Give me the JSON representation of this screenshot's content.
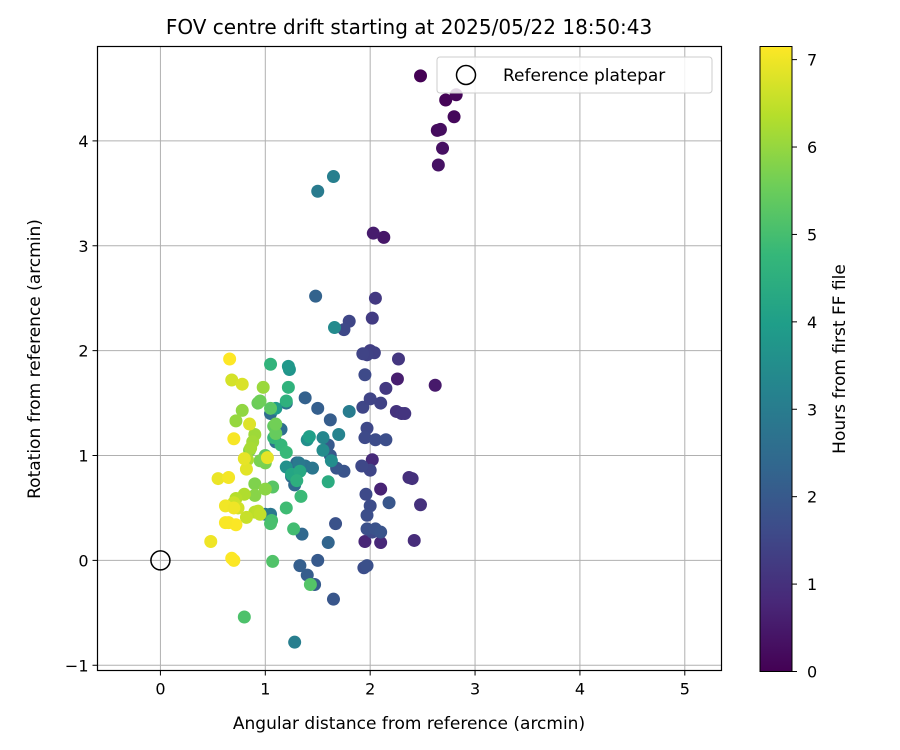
{
  "chart_data": {
    "type": "scatter",
    "title": "FOV centre drift starting at 2025/05/22 18:50:43",
    "xlabel": "Angular distance from reference (arcmin)",
    "ylabel": "Rotation from reference (arcmin)",
    "xlim": [
      -0.6,
      5.35
    ],
    "ylim": [
      -1.05,
      4.9
    ],
    "xticks": [
      0,
      1,
      2,
      3,
      4,
      5
    ],
    "yticks": [
      -1,
      0,
      1,
      2,
      3,
      4
    ],
    "xtick_labels": [
      "0",
      "1",
      "2",
      "3",
      "4",
      "5"
    ],
    "ytick_labels": [
      "−1",
      "0",
      "1",
      "2",
      "3",
      "4"
    ],
    "grid": true,
    "legend": {
      "placement": "top-right",
      "entries": [
        {
          "label": "Reference platepar",
          "marker": "open-circle"
        }
      ]
    },
    "reference_point": {
      "x": 0,
      "y": 0
    },
    "colorbar": {
      "label": "Hours from first FF file",
      "range": [
        0,
        7.15
      ],
      "ticks": [
        0,
        1,
        2,
        3,
        4,
        5,
        6,
        7
      ],
      "tick_labels": [
        "0",
        "1",
        "2",
        "3",
        "4",
        "5",
        "6",
        "7"
      ],
      "colormap": "viridis"
    },
    "series": [
      {
        "points": [
          [
            2.48,
            4.62,
            0.0
          ],
          [
            2.72,
            4.39,
            0.05
          ],
          [
            2.82,
            4.44,
            0.1
          ],
          [
            2.8,
            4.23,
            0.15
          ],
          [
            2.64,
            4.1,
            0.2
          ],
          [
            2.67,
            4.11,
            0.25
          ],
          [
            2.69,
            3.93,
            0.3
          ],
          [
            2.65,
            3.77,
            0.35
          ],
          [
            2.13,
            3.08,
            0.45
          ],
          [
            2.03,
            3.12,
            0.55
          ],
          [
            2.62,
            1.67,
            0.5
          ],
          [
            2.26,
            1.73,
            0.6
          ],
          [
            2.1,
            0.68,
            0.7
          ],
          [
            1.95,
            0.18,
            0.75
          ],
          [
            2.1,
            0.17,
            0.8
          ],
          [
            2.02,
            0.96,
            0.85
          ],
          [
            2.42,
            0.19,
            0.9
          ],
          [
            2.48,
            0.53,
            1.0
          ],
          [
            2.37,
            0.79,
            0.95
          ],
          [
            2.4,
            0.78,
            1.0
          ],
          [
            2.25,
            1.42,
            1.05
          ],
          [
            2.3,
            1.4,
            1.1
          ],
          [
            2.33,
            1.4,
            1.1
          ],
          [
            2.27,
            1.92,
            1.15
          ],
          [
            2.15,
            1.64,
            1.2
          ],
          [
            2.05,
            2.5,
            1.2
          ],
          [
            2.02,
            2.31,
            1.25
          ],
          [
            2.0,
            2.0,
            1.3
          ],
          [
            2.04,
            1.98,
            1.35
          ],
          [
            1.97,
            1.96,
            1.4
          ],
          [
            1.93,
            1.97,
            1.45
          ],
          [
            1.8,
            2.28,
            1.5
          ],
          [
            1.75,
            2.2,
            1.55
          ],
          [
            1.95,
            1.77,
            1.6
          ],
          [
            1.93,
            1.46,
            1.5
          ],
          [
            2.1,
            1.5,
            1.4
          ],
          [
            2.0,
            1.54,
            1.45
          ],
          [
            1.97,
            1.26,
            1.55
          ],
          [
            1.95,
            1.17,
            1.6
          ],
          [
            2.05,
            1.15,
            1.65
          ],
          [
            2.15,
            1.15,
            1.7
          ],
          [
            2.0,
            0.86,
            1.5
          ],
          [
            1.92,
            0.9,
            1.55
          ],
          [
            1.96,
            0.63,
            1.6
          ],
          [
            2.0,
            0.52,
            1.65
          ],
          [
            1.97,
            0.43,
            1.7
          ],
          [
            2.02,
            0.27,
            1.6
          ],
          [
            1.97,
            0.3,
            1.75
          ],
          [
            2.05,
            0.3,
            1.8
          ],
          [
            2.1,
            0.27,
            1.85
          ],
          [
            2.18,
            0.55,
            1.9
          ],
          [
            1.94,
            -0.07,
            1.7
          ],
          [
            1.97,
            -0.05,
            1.75
          ],
          [
            1.67,
            0.35,
            1.8
          ],
          [
            1.65,
            -0.37,
            1.9
          ],
          [
            1.5,
            0.0,
            2.0
          ],
          [
            1.47,
            -0.23,
            2.05
          ],
          [
            1.4,
            -0.14,
            2.1
          ],
          [
            1.33,
            -0.05,
            2.15
          ],
          [
            1.75,
            0.85,
            1.85
          ],
          [
            1.68,
            0.88,
            1.9
          ],
          [
            1.62,
            1.0,
            1.95
          ],
          [
            1.6,
            1.1,
            2.0
          ],
          [
            1.58,
            1.05,
            2.05
          ],
          [
            1.62,
            1.34,
            2.1
          ],
          [
            1.5,
            1.45,
            2.15
          ],
          [
            1.38,
            1.55,
            2.2
          ],
          [
            1.48,
            2.52,
            2.25
          ],
          [
            1.6,
            0.17,
            2.3
          ],
          [
            1.3,
            0.93,
            2.35
          ],
          [
            1.35,
            0.25,
            2.4
          ],
          [
            1.28,
            0.72,
            2.45
          ],
          [
            1.25,
            0.8,
            2.5
          ],
          [
            1.05,
            1.4,
            2.55
          ],
          [
            1.15,
            1.25,
            2.6
          ],
          [
            1.2,
            1.5,
            2.65
          ],
          [
            1.1,
            1.13,
            2.7
          ],
          [
            1.38,
            0.9,
            2.75
          ],
          [
            1.45,
            0.88,
            2.8
          ],
          [
            1.05,
            0.44,
            2.85
          ],
          [
            1.32,
            0.93,
            2.9
          ],
          [
            1.0,
            0.44,
            2.95
          ],
          [
            1.5,
            3.52,
            2.95
          ],
          [
            1.8,
            1.42,
            3.0
          ],
          [
            1.28,
            -0.78,
            3.05
          ],
          [
            1.65,
            3.66,
            3.1
          ],
          [
            1.7,
            1.2,
            3.2
          ],
          [
            1.55,
            1.17,
            3.3
          ],
          [
            1.66,
            2.22,
            3.4
          ],
          [
            1.63,
            0.95,
            3.5
          ],
          [
            1.55,
            1.05,
            3.45
          ],
          [
            1.4,
            1.15,
            3.55
          ],
          [
            1.2,
            0.89,
            3.6
          ],
          [
            1.23,
            1.82,
            3.7
          ],
          [
            1.22,
            1.85,
            3.8
          ],
          [
            1.1,
            1.45,
            3.9
          ],
          [
            1.42,
            1.18,
            4.0
          ],
          [
            1.25,
            0.82,
            4.2
          ],
          [
            1.33,
            0.85,
            4.3
          ],
          [
            1.6,
            0.75,
            4.4
          ],
          [
            1.3,
            0.76,
            4.5
          ],
          [
            1.2,
            1.52,
            4.55
          ],
          [
            1.22,
            1.65,
            4.6
          ],
          [
            1.05,
            1.87,
            4.65
          ],
          [
            1.08,
            1.17,
            4.7
          ],
          [
            1.15,
            1.1,
            4.75
          ],
          [
            1.2,
            1.03,
            4.8
          ],
          [
            1.34,
            0.61,
            4.85
          ],
          [
            1.2,
            0.5,
            4.9
          ],
          [
            1.27,
            0.3,
            4.95
          ],
          [
            1.06,
            0.38,
            5.0
          ],
          [
            1.05,
            0.35,
            5.05
          ],
          [
            0.8,
            -0.54,
            5.1
          ],
          [
            1.07,
            -0.01,
            5.15
          ],
          [
            1.43,
            -0.23,
            5.2
          ],
          [
            1.07,
            0.7,
            5.25
          ],
          [
            1.05,
            1.45,
            5.3
          ],
          [
            1.0,
            1.0,
            5.35
          ],
          [
            1.08,
            1.28,
            5.4
          ],
          [
            1.1,
            1.21,
            5.45
          ],
          [
            0.93,
            1.5,
            5.5
          ],
          [
            0.95,
            1.52,
            5.55
          ],
          [
            1.1,
            1.3,
            5.6
          ],
          [
            1.0,
            0.93,
            5.65
          ],
          [
            0.95,
            0.95,
            5.7
          ],
          [
            0.9,
            0.73,
            5.75
          ],
          [
            0.85,
            1.05,
            5.8
          ],
          [
            0.9,
            0.62,
            5.85
          ],
          [
            1.0,
            0.68,
            5.9
          ],
          [
            0.78,
            1.43,
            5.95
          ],
          [
            0.72,
            1.33,
            6.0
          ],
          [
            0.98,
            1.65,
            6.05
          ],
          [
            0.9,
            1.2,
            6.1
          ],
          [
            0.88,
            1.13,
            6.15
          ],
          [
            0.86,
            1.07,
            6.2
          ],
          [
            0.83,
            0.96,
            6.25
          ],
          [
            0.8,
            0.63,
            6.3
          ],
          [
            0.72,
            0.59,
            6.35
          ],
          [
            0.9,
            0.46,
            6.4
          ],
          [
            0.93,
            0.47,
            6.45
          ],
          [
            0.95,
            0.44,
            6.5
          ],
          [
            0.82,
            0.41,
            6.55
          ],
          [
            0.7,
            0.55,
            6.6
          ],
          [
            0.74,
            0.5,
            6.65
          ],
          [
            0.68,
            1.72,
            6.7
          ],
          [
            0.78,
            1.68,
            6.75
          ],
          [
            0.85,
            1.3,
            6.8
          ],
          [
            0.82,
            0.87,
            6.85
          ],
          [
            0.8,
            0.97,
            6.9
          ],
          [
            0.55,
            0.78,
            6.95
          ],
          [
            0.48,
            0.18,
            7.0
          ],
          [
            0.62,
            0.52,
            7.02
          ],
          [
            0.65,
            0.79,
            7.05
          ],
          [
            0.7,
            1.16,
            7.08
          ],
          [
            0.65,
            0.36,
            7.1
          ],
          [
            0.7,
            0.0,
            7.12
          ],
          [
            0.68,
            0.02,
            7.14
          ],
          [
            0.66,
            1.92,
            7.15
          ],
          [
            0.72,
            0.34,
            7.13
          ],
          [
            0.62,
            0.36,
            7.11
          ],
          [
            0.7,
            0.5,
            7.0
          ],
          [
            1.02,
            0.98,
            6.9
          ]
        ]
      }
    ]
  }
}
